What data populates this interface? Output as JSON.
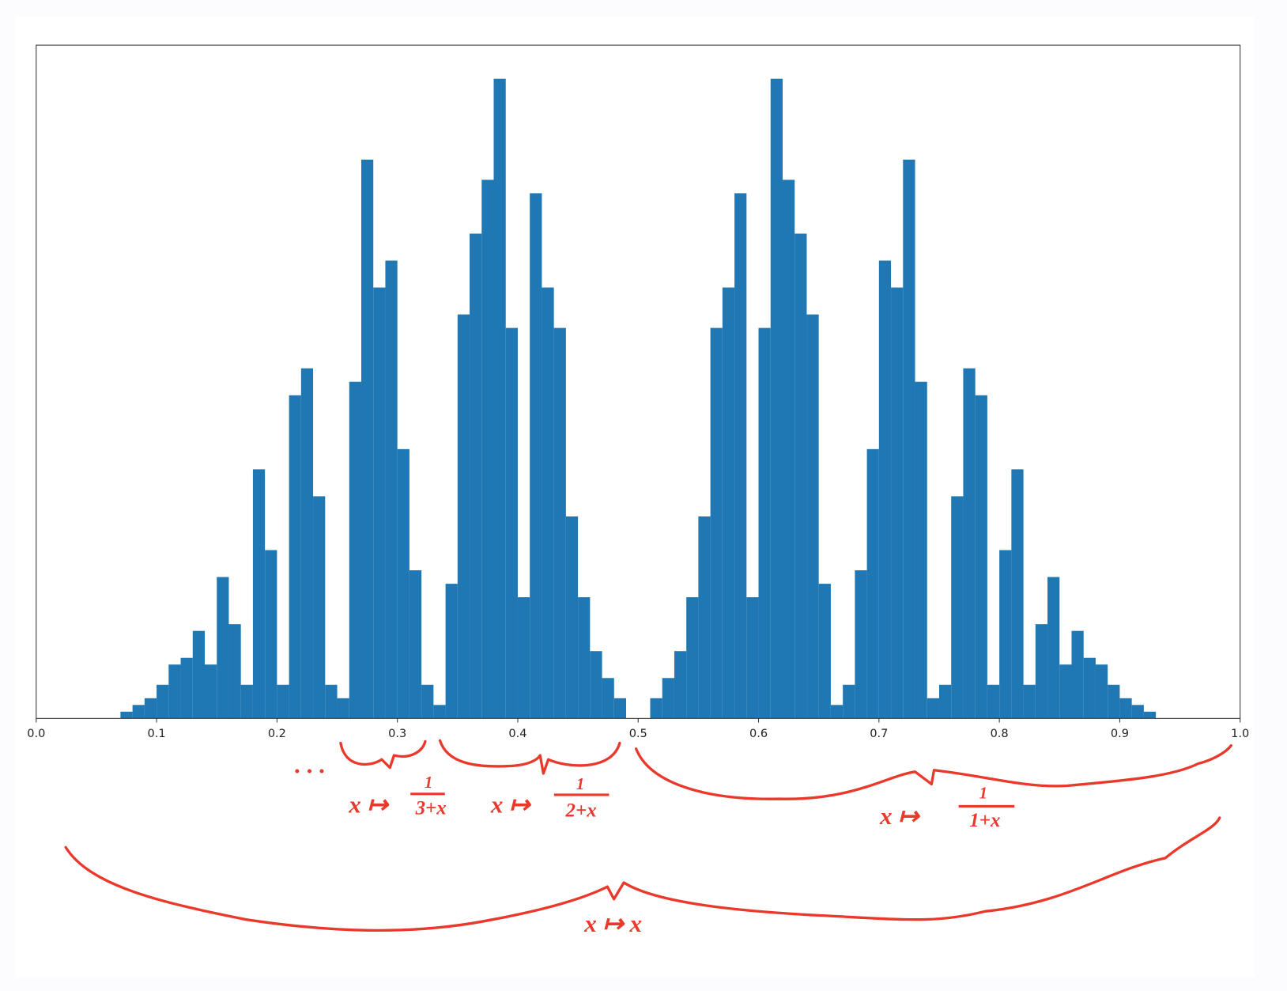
{
  "chart_data": {
    "type": "histogram",
    "bins": [
      0,
      0.01,
      0.02,
      0.03,
      0.04,
      0.05,
      0.06,
      0.07,
      0.08,
      0.09,
      0.1,
      0.11,
      0.12,
      0.13,
      0.14,
      0.15,
      0.16,
      0.17,
      0.18,
      0.19,
      0.2,
      0.21,
      0.22,
      0.23,
      0.24,
      0.25,
      0.26,
      0.27,
      0.28,
      0.29,
      0.3,
      0.31,
      0.32,
      0.33,
      0.34,
      0.35,
      0.36,
      0.37,
      0.38,
      0.39,
      0.4,
      0.41,
      0.42,
      0.43,
      0.44,
      0.45,
      0.46,
      0.47,
      0.48,
      0.49,
      0.5,
      0.51,
      0.52,
      0.53,
      0.54,
      0.55,
      0.56,
      0.57,
      0.58,
      0.59,
      0.6,
      0.61,
      0.62,
      0.63,
      0.64,
      0.65,
      0.66,
      0.67,
      0.68,
      0.69,
      0.7,
      0.71,
      0.72,
      0.73,
      0.74,
      0.75,
      0.76,
      0.77,
      0.78,
      0.79,
      0.8,
      0.81,
      0.82,
      0.83,
      0.84,
      0.85,
      0.86,
      0.87,
      0.88,
      0.89,
      0.9,
      0.91,
      0.92,
      0.93,
      0.94,
      0.95,
      0.96,
      0.97,
      0.98,
      0.99,
      1
    ],
    "values": [
      0,
      0,
      0,
      0,
      0,
      0,
      0,
      1,
      2,
      3,
      5,
      8,
      9,
      13,
      8,
      21,
      14,
      5,
      37,
      25,
      5,
      48,
      52,
      33,
      5,
      3,
      50,
      83,
      64,
      68,
      40,
      22,
      5,
      2,
      20,
      60,
      72,
      80,
      95,
      58,
      18,
      78,
      64,
      58,
      30,
      18,
      10,
      6,
      3,
      0,
      0,
      3,
      6,
      10,
      18,
      30,
      58,
      64,
      78,
      18,
      58,
      95,
      80,
      72,
      60,
      20,
      2,
      5,
      22,
      40,
      68,
      64,
      83,
      50,
      3,
      5,
      33,
      52,
      48,
      5,
      25,
      37,
      5,
      14,
      21,
      8,
      13,
      9,
      8,
      5,
      3,
      2,
      1,
      0,
      0,
      0,
      0,
      0,
      0,
      0
    ],
    "color": "#1f77b4",
    "xlim": [
      0,
      1
    ],
    "ylim": [
      0,
      100
    ],
    "xticks": [
      {
        "value": 0,
        "label": "0.0"
      },
      0.1,
      0.2,
      0.3,
      0.4,
      0.5,
      0.6,
      0.7,
      0.8,
      0.9,
      {
        "value": 1,
        "label": "1.0"
      }
    ],
    "annotations": [
      {
        "text": "· · ·"
      },
      {
        "text": "x ↦",
        "numerator": "1",
        "denominator": "3+x"
      },
      {
        "text": "x ↦",
        "numerator": "1",
        "denominator": "2+x"
      },
      {
        "text": "x ↦",
        "numerator": "1",
        "denominator": "1+x"
      },
      {
        "text": "x ↦ x"
      }
    ]
  }
}
